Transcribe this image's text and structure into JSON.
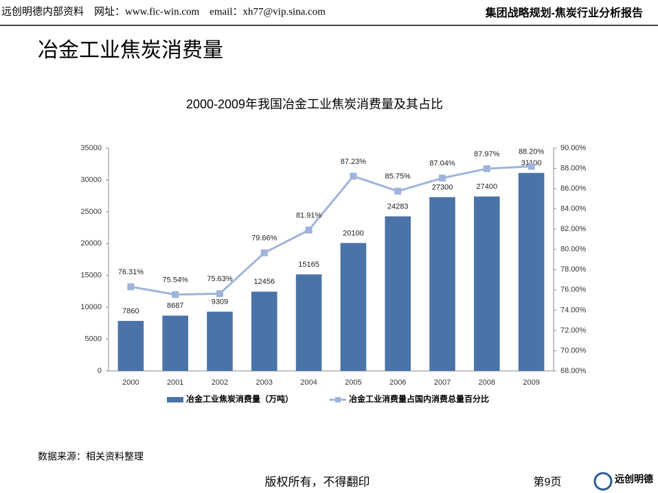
{
  "header": {
    "left": "远创明德内部资料　网址：www.fic-win.com　email：xh77@vip.sina.com",
    "right": "集团战略规划-焦炭行业分析报告"
  },
  "page_title": "冶金工业焦炭消费量",
  "source": "数据来源：相关资料整理",
  "footer": {
    "copyright": "版权所有，不得翻印",
    "page": "第9页",
    "logo": "远创明德"
  },
  "chart_data": {
    "type": "bar",
    "title": "2000-2009年我国冶金工业焦炭消费量及其占比",
    "categories": [
      "2000",
      "2001",
      "2002",
      "2003",
      "2004",
      "2005",
      "2006",
      "2007",
      "2008",
      "2009"
    ],
    "series": [
      {
        "name": "冶金工业焦炭消费量（万吨）",
        "type": "bar",
        "color": "#4a74a8",
        "values": [
          7860,
          8687,
          9309,
          12456,
          15165,
          20100,
          24283,
          27300,
          27400,
          31100
        ]
      },
      {
        "name": "冶金工业消费量占国内消费总量百分比",
        "type": "line",
        "axis": "y2",
        "color": "#9fb4da",
        "values": [
          76.31,
          75.54,
          75.63,
          79.66,
          81.91,
          87.23,
          85.75,
          87.04,
          87.97,
          88.2
        ],
        "value_labels": [
          "76.31%",
          "75.54%",
          "75.63%",
          "79.66%",
          "81.91%",
          "87.23%",
          "85.75%",
          "87.04%",
          "87.97%",
          "88.20%"
        ]
      }
    ],
    "ylim": [
      0,
      35000
    ],
    "yticks": [
      0,
      5000,
      10000,
      15000,
      20000,
      25000,
      30000,
      35000
    ],
    "y2lim": [
      68,
      90
    ],
    "y2ticks": [
      {
        "value": 68,
        "label": "68.00%"
      },
      {
        "value": 70,
        "label": "70.00%"
      },
      {
        "value": 72,
        "label": "72.00%"
      },
      {
        "value": 74,
        "label": "74.00%"
      },
      {
        "value": 76,
        "label": "76.00%"
      },
      {
        "value": 78,
        "label": "78.00%"
      },
      {
        "value": 80,
        "label": "80.00%"
      },
      {
        "value": 82,
        "label": "82.00%"
      },
      {
        "value": 84,
        "label": "84.00%"
      },
      {
        "value": 86,
        "label": "86.00%"
      },
      {
        "value": 88,
        "label": "88.00%"
      },
      {
        "value": 90,
        "label": "90.00%"
      }
    ],
    "legend": "bottom"
  }
}
